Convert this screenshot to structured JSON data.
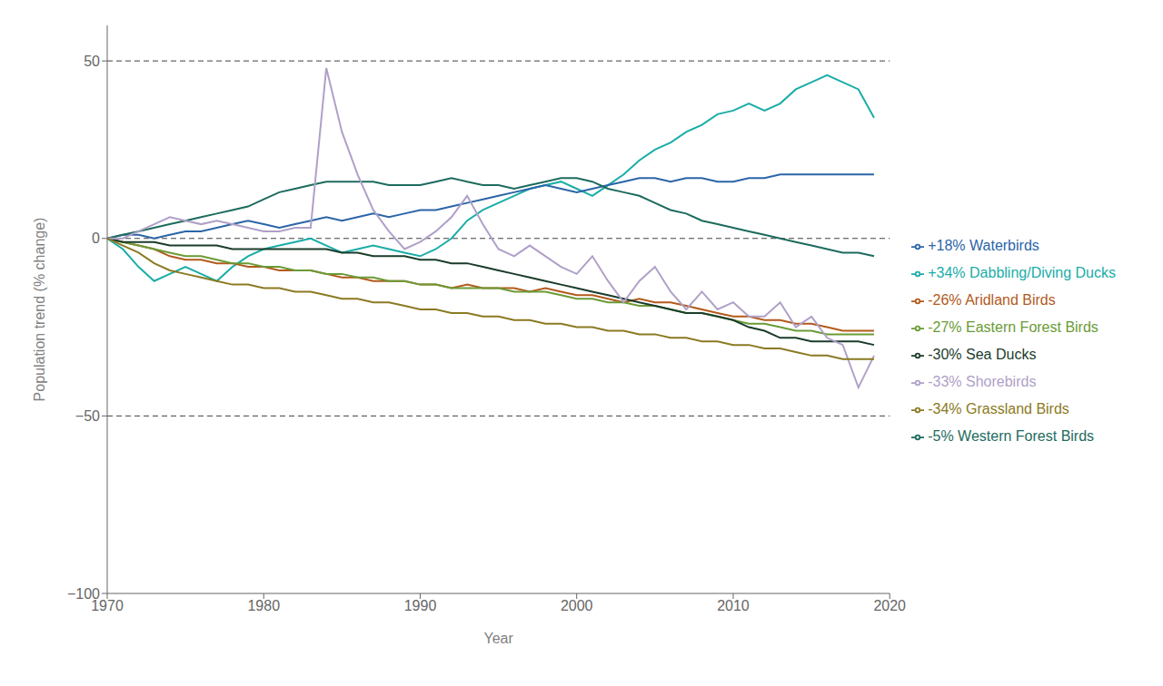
{
  "chart_data": {
    "type": "line",
    "xlabel": "Year",
    "ylabel": "Population trend (% change)",
    "xlim": [
      1970,
      2020
    ],
    "ylim": [
      -100,
      60
    ],
    "xticks": [
      1970,
      1980,
      1990,
      2000,
      2010,
      2020
    ],
    "yticks": [
      {
        "value": -100,
        "label": "−100"
      },
      {
        "value": -50,
        "label": "−50"
      },
      0,
      50
    ],
    "reference_lines": [
      50,
      0,
      -50
    ],
    "grid": false,
    "legend": "right",
    "x": [
      1970,
      1971,
      1972,
      1973,
      1974,
      1975,
      1976,
      1977,
      1978,
      1979,
      1980,
      1981,
      1982,
      1983,
      1984,
      1985,
      1986,
      1987,
      1988,
      1989,
      1990,
      1991,
      1992,
      1993,
      1994,
      1995,
      1996,
      1997,
      1998,
      1999,
      2000,
      2001,
      2002,
      2003,
      2004,
      2005,
      2006,
      2007,
      2008,
      2009,
      2010,
      2011,
      2012,
      2013,
      2014,
      2015,
      2016,
      2017,
      2018,
      2019
    ],
    "series": [
      {
        "name": "+34% Dabbling/Diving Ducks",
        "color": "#1aada8",
        "values": [
          0,
          -3,
          -8,
          -12,
          -10,
          -8,
          -10,
          -12,
          -8,
          -5,
          -3,
          -2,
          -1,
          0,
          -2,
          -4,
          -3,
          -2,
          -3,
          -4,
          -5,
          -3,
          0,
          5,
          8,
          10,
          12,
          14,
          15,
          16,
          14,
          12,
          15,
          18,
          22,
          25,
          27,
          30,
          32,
          35,
          36,
          38,
          36,
          38,
          42,
          44,
          46,
          44,
          42,
          34
        ]
      },
      {
        "name": "+18% Waterbirds",
        "color": "#2b65a8",
        "values": [
          0,
          1,
          1,
          0,
          1,
          2,
          2,
          3,
          4,
          5,
          4,
          3,
          4,
          5,
          6,
          5,
          6,
          7,
          6,
          7,
          8,
          8,
          9,
          10,
          11,
          12,
          13,
          14,
          15,
          14,
          13,
          14,
          15,
          16,
          17,
          17,
          16,
          17,
          17,
          16,
          16,
          17,
          17,
          18,
          18,
          18,
          18,
          18,
          18,
          18
        ]
      },
      {
        "name": "-5% Western Forest Birds",
        "color": "#1d6b5e",
        "values": [
          0,
          1,
          2,
          3,
          4,
          5,
          6,
          7,
          8,
          9,
          11,
          13,
          14,
          15,
          16,
          16,
          16,
          16,
          15,
          15,
          15,
          16,
          17,
          16,
          15,
          15,
          14,
          15,
          16,
          17,
          17,
          16,
          14,
          13,
          12,
          10,
          8,
          7,
          5,
          4,
          3,
          2,
          1,
          0,
          -1,
          -2,
          -3,
          -4,
          -4,
          -5
        ]
      },
      {
        "name": "-26% Aridland Birds",
        "color": "#b35a1c",
        "values": [
          0,
          -1,
          -2,
          -3,
          -5,
          -6,
          -6,
          -7,
          -7,
          -8,
          -8,
          -9,
          -9,
          -9,
          -10,
          -11,
          -11,
          -12,
          -12,
          -12,
          -13,
          -13,
          -14,
          -13,
          -14,
          -14,
          -14,
          -15,
          -14,
          -15,
          -16,
          -16,
          -17,
          -18,
          -17,
          -18,
          -18,
          -19,
          -20,
          -21,
          -22,
          -22,
          -23,
          -23,
          -24,
          -24,
          -25,
          -26,
          -26,
          -26
        ]
      },
      {
        "name": "-27% Eastern Forest Birds",
        "color": "#6a9b35",
        "values": [
          0,
          -1,
          -2,
          -3,
          -4,
          -5,
          -5,
          -6,
          -7,
          -7,
          -8,
          -8,
          -9,
          -9,
          -10,
          -10,
          -11,
          -11,
          -12,
          -12,
          -13,
          -13,
          -14,
          -14,
          -14,
          -14,
          -15,
          -15,
          -15,
          -16,
          -17,
          -17,
          -18,
          -18,
          -19,
          -19,
          -20,
          -21,
          -21,
          -22,
          -23,
          -24,
          -24,
          -25,
          -26,
          -26,
          -27,
          -27,
          -27,
          -27
        ]
      },
      {
        "name": "-30% Sea Ducks",
        "color": "#1a3d2b",
        "values": [
          0,
          -1,
          -1,
          -1,
          -2,
          -2,
          -2,
          -2,
          -3,
          -3,
          -3,
          -3,
          -3,
          -3,
          -3,
          -4,
          -4,
          -5,
          -5,
          -5,
          -6,
          -6,
          -7,
          -7,
          -8,
          -9,
          -10,
          -11,
          -12,
          -13,
          -14,
          -15,
          -16,
          -17,
          -18,
          -19,
          -20,
          -21,
          -21,
          -22,
          -23,
          -25,
          -26,
          -28,
          -28,
          -29,
          -29,
          -29,
          -29,
          -30
        ]
      },
      {
        "name": "-33% Shorebirds",
        "color": "#b0a0c8",
        "values": [
          0,
          0,
          2,
          4,
          6,
          5,
          4,
          5,
          4,
          3,
          2,
          2,
          3,
          3,
          48,
          30,
          18,
          8,
          2,
          -3,
          -1,
          2,
          6,
          12,
          4,
          -3,
          -5,
          -2,
          -5,
          -8,
          -10,
          -5,
          -12,
          -18,
          -12,
          -8,
          -15,
          -20,
          -15,
          -20,
          -18,
          -22,
          -22,
          -18,
          -25,
          -22,
          -28,
          -30,
          -42,
          -33
        ]
      },
      {
        "name": "-34% Grassland Birds",
        "color": "#8b7a22",
        "values": [
          0,
          -2,
          -4,
          -7,
          -9,
          -10,
          -11,
          -12,
          -13,
          -13,
          -14,
          -14,
          -15,
          -15,
          -16,
          -17,
          -17,
          -18,
          -18,
          -19,
          -20,
          -20,
          -21,
          -21,
          -22,
          -22,
          -23,
          -23,
          -24,
          -24,
          -25,
          -25,
          -26,
          -26,
          -27,
          -27,
          -28,
          -28,
          -29,
          -29,
          -30,
          -30,
          -31,
          -31,
          -32,
          -33,
          -33,
          -34,
          -34,
          -34
        ]
      }
    ]
  }
}
